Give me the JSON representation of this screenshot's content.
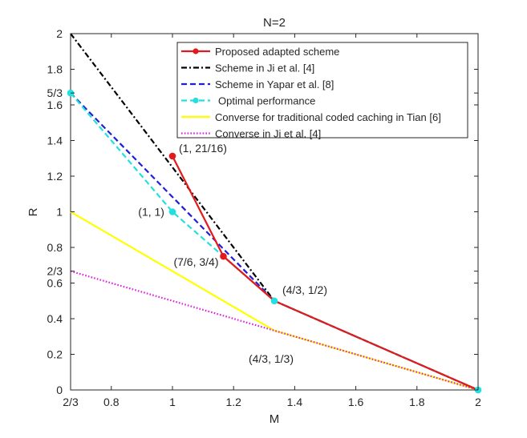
{
  "chart_data": {
    "type": "line",
    "title": "N=2",
    "xlabel": "M",
    "ylabel": "R",
    "xlim": [
      0.6667,
      2
    ],
    "ylim": [
      0,
      2
    ],
    "xticks": [
      {
        "value": 0.6667,
        "label": "2/3"
      },
      {
        "value": 0.8,
        "label": "0.8"
      },
      {
        "value": 1.0,
        "label": "1"
      },
      {
        "value": 1.2,
        "label": "1.2"
      },
      {
        "value": 1.4,
        "label": "1.4"
      },
      {
        "value": 1.6,
        "label": "1.6"
      },
      {
        "value": 1.8,
        "label": "1.8"
      },
      {
        "value": 2.0,
        "label": "2"
      }
    ],
    "yticks": [
      {
        "value": 0,
        "label": "0"
      },
      {
        "value": 0.2,
        "label": "0.2"
      },
      {
        "value": 0.4,
        "label": "0.4"
      },
      {
        "value": 0.6,
        "label": "0.6"
      },
      {
        "value": 0.6667,
        "label": "2/3"
      },
      {
        "value": 0.8,
        "label": "0.8"
      },
      {
        "value": 1.0,
        "label": "1"
      },
      {
        "value": 1.2,
        "label": "1.2"
      },
      {
        "value": 1.4,
        "label": "1.4"
      },
      {
        "value": 1.6,
        "label": "1.6"
      },
      {
        "value": 1.6667,
        "label": "5/3"
      },
      {
        "value": 1.8,
        "label": "1.8"
      },
      {
        "value": 2.0,
        "label": "2"
      }
    ],
    "grid": false,
    "legend_position": "top-right",
    "series": [
      {
        "name": "Proposed adapted scheme",
        "color": "#e31a1c",
        "style": "solid",
        "marker": "dot",
        "x": [
          1.0,
          1.1667,
          1.3333,
          2.0
        ],
        "y": [
          1.3125,
          0.75,
          0.5,
          0.0
        ]
      },
      {
        "name": "Scheme in Ji et al. [4]",
        "color": "#000000",
        "style": "dashdot",
        "marker": "none",
        "x": [
          0.6667,
          1.3333,
          2.0
        ],
        "y": [
          2.0,
          0.5,
          0.0
        ]
      },
      {
        "name": "Scheme in Yapar et al. [8]",
        "color": "#1f1fd6",
        "style": "dashed",
        "marker": "none",
        "x": [
          0.6667,
          1.3333,
          2.0
        ],
        "y": [
          1.6667,
          0.5,
          0.0
        ]
      },
      {
        "name": "Optimal performance",
        "color": "#22e0e0",
        "style": "dashed",
        "marker": "dot",
        "x": [
          0.6667,
          1.0,
          1.3333,
          2.0
        ],
        "y": [
          1.6667,
          1.0,
          0.5,
          0.0
        ]
      },
      {
        "name": "Converse for traditional coded caching in Tian [6]",
        "color": "#ffff00",
        "style": "solid",
        "marker": "none",
        "x": [
          0.6667,
          1.3333,
          2.0
        ],
        "y": [
          1.0,
          0.3333,
          0.0
        ]
      },
      {
        "name": "Converse in Ji et al. [4]",
        "color": "#e020e0",
        "style": "dotted",
        "marker": "none",
        "x": [
          0.6667,
          2.0
        ],
        "y": [
          0.6667,
          0.0
        ]
      }
    ],
    "annotations": [
      {
        "text": "(1, 21/16)",
        "x": 1.0,
        "y": 1.3125,
        "anchor": "upper-right"
      },
      {
        "text": "(1, 1)",
        "x": 1.0,
        "y": 1.0,
        "anchor": "left"
      },
      {
        "text": "(7/6, 3/4)",
        "x": 1.1667,
        "y": 0.75,
        "anchor": "lower-left"
      },
      {
        "text": "(4/3, 1/2)",
        "x": 1.3333,
        "y": 0.5,
        "anchor": "upper-right"
      },
      {
        "text": "(4/3, 1/3)",
        "x": 1.3333,
        "y": 0.3333,
        "anchor": "below"
      }
    ]
  }
}
